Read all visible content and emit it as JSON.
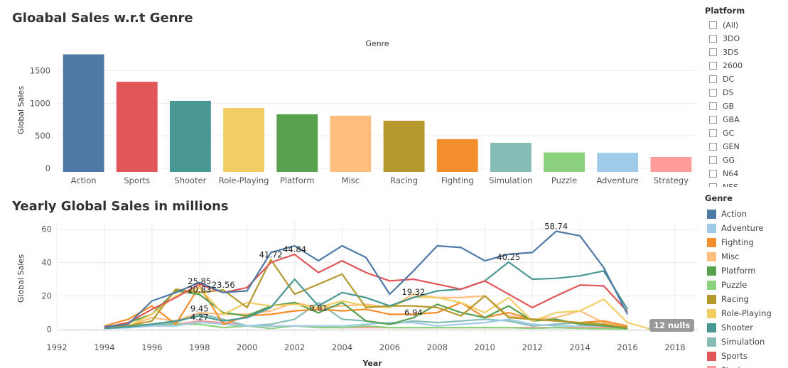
{
  "charts": {
    "bar_title": "Gloabal Sales w.r.t Genre",
    "line_title": "Yearly Global Sales in millions"
  },
  "platform_filter": {
    "title": "Platform",
    "options": [
      "(All)",
      "3DO",
      "3DS",
      "2600",
      "DC",
      "DS",
      "GB",
      "GBA",
      "GC",
      "GEN",
      "GG",
      "N64",
      "NES"
    ]
  },
  "genre_legend": {
    "title": "Genre",
    "items": [
      {
        "label": "Action",
        "color": "#4e79a7"
      },
      {
        "label": "Adventure",
        "color": "#a0cbe8"
      },
      {
        "label": "Fighting",
        "color": "#f28e2b"
      },
      {
        "label": "Misc",
        "color": "#ffbe7d"
      },
      {
        "label": "Platform",
        "color": "#59a14f"
      },
      {
        "label": "Puzzle",
        "color": "#8cd17d"
      },
      {
        "label": "Racing",
        "color": "#b6992d"
      },
      {
        "label": "Role-Playing",
        "color": "#f1ce63"
      },
      {
        "label": "Shooter",
        "color": "#499894"
      },
      {
        "label": "Simulation",
        "color": "#86bcb6"
      },
      {
        "label": "Sports",
        "color": "#e15759"
      },
      {
        "label": "Strategy",
        "color": "#ff9d9a"
      }
    ]
  },
  "nulls_badge": "12 nulls",
  "chart_data": [
    {
      "type": "bar",
      "title": "Gloabal Sales w.r.t Genre",
      "header": "Genre",
      "ylabel": "Global Sales",
      "ylim": [
        0,
        1800
      ],
      "yticks": [
        0,
        500,
        1000,
        1500
      ],
      "grid": true,
      "categories": [
        "Action",
        "Sports",
        "Shooter",
        "Role-Playing",
        "Platform",
        "Misc",
        "Racing",
        "Fighting",
        "Simulation",
        "Puzzle",
        "Adventure",
        "Strategy"
      ],
      "values": [
        1751,
        1330,
        1037,
        927,
        831,
        809,
        732,
        449,
        392,
        245,
        239,
        175
      ],
      "colors": [
        "#4e79a7",
        "#e15759",
        "#499894",
        "#f1ce63",
        "#59a14f",
        "#ffbe7d",
        "#b6992d",
        "#f28e2b",
        "#86bcb6",
        "#8cd17d",
        "#a0cbe8",
        "#ff9d9a"
      ]
    },
    {
      "type": "line",
      "title": "Yearly Global Sales in millions",
      "xlabel": "Year",
      "ylabel": "Global Sales",
      "xlim": [
        1992,
        2018.8
      ],
      "ylim": [
        -1,
        62
      ],
      "xticks": [
        1992,
        1994,
        1996,
        1998,
        2000,
        2002,
        2004,
        2006,
        2008,
        2010,
        2012,
        2014,
        2016,
        2018
      ],
      "yticks": [
        0,
        20,
        40,
        60
      ],
      "grid": true,
      "series": [
        {
          "name": "Action",
          "color": "#4e79a7",
          "x": [
            1994,
            1995,
            1996,
            1997,
            1998,
            1999,
            2000,
            2001,
            2002,
            2003,
            2004,
            2005,
            2006,
            2007,
            2008,
            2009,
            2010,
            2011,
            2012,
            2013,
            2014,
            2015,
            2016
          ],
          "y": [
            1.5,
            3,
            17,
            22,
            28,
            22,
            23,
            46,
            50,
            41,
            50,
            43,
            21,
            35,
            50,
            49,
            41,
            45,
            46,
            58.74,
            56,
            37,
            9
          ]
        },
        {
          "name": "Sports",
          "color": "#e15759",
          "x": [
            1994,
            1995,
            1996,
            1997,
            1998,
            1999,
            2000,
            2001,
            2002,
            2003,
            2004,
            2005,
            2006,
            2007,
            2008,
            2009,
            2010,
            2011,
            2012,
            2013,
            2014,
            2015,
            2016
          ],
          "y": [
            1,
            4,
            12,
            19,
            27,
            22,
            25,
            40,
            44.84,
            34,
            41,
            34,
            29,
            30,
            27,
            24,
            29,
            21,
            13,
            20,
            26.5,
            26,
            10.5
          ]
        },
        {
          "name": "Shooter",
          "color": "#499894",
          "x": [
            1994,
            1995,
            1996,
            1997,
            1998,
            1999,
            2000,
            2001,
            2002,
            2003,
            2004,
            2005,
            2006,
            2007,
            2008,
            2009,
            2010,
            2011,
            2012,
            2013,
            2014,
            2015,
            2016
          ],
          "y": [
            0.5,
            1.5,
            3,
            5,
            8,
            5,
            7,
            13,
            30,
            14,
            22,
            19,
            14,
            19,
            23,
            24,
            29,
            40.25,
            30,
            30.5,
            32,
            35,
            12
          ]
        },
        {
          "name": "Racing",
          "color": "#b6992d",
          "x": [
            1994,
            1995,
            1996,
            1997,
            1998,
            1999,
            2000,
            2001,
            2002,
            2003,
            2004,
            2005,
            2006,
            2007,
            2008,
            2009,
            2010,
            2011,
            2012,
            2013,
            2014,
            2015,
            2016
          ],
          "y": [
            1,
            2,
            5,
            24,
            22,
            23.56,
            13,
            41.72,
            21,
            27,
            33,
            13,
            14,
            14,
            13,
            8,
            20,
            7,
            6,
            5,
            4,
            3,
            1
          ]
        },
        {
          "name": "Role-Playing",
          "color": "#f1ce63",
          "x": [
            1994,
            1995,
            1996,
            1997,
            1998,
            1999,
            2000,
            2001,
            2002,
            2003,
            2004,
            2005,
            2006,
            2007,
            2008,
            2009,
            2010,
            2011,
            2012,
            2013,
            2014,
            2015,
            2016,
            2017
          ],
          "y": [
            1,
            2,
            9,
            20,
            25,
            9,
            16,
            14,
            15,
            13,
            17,
            14,
            13,
            19.32,
            19,
            16,
            10,
            19,
            5,
            10,
            11,
            18,
            4,
            0
          ]
        },
        {
          "name": "Platform",
          "color": "#59a14f",
          "x": [
            1994,
            1995,
            1996,
            1997,
            1998,
            1999,
            2000,
            2001,
            2002,
            2003,
            2004,
            2005,
            2006,
            2007,
            2008,
            2009,
            2010,
            2011,
            2012,
            2013,
            2014,
            2015,
            2016
          ],
          "y": [
            1,
            4,
            9,
            23,
            20.83,
            10,
            8,
            14,
            16,
            9.81,
            16,
            5,
            3,
            6.94,
            15,
            10,
            7,
            14,
            5,
            6,
            3,
            2,
            0.5
          ]
        },
        {
          "name": "Fighting",
          "color": "#f28e2b",
          "x": [
            1994,
            1995,
            1996,
            1997,
            1998,
            1999,
            2000,
            2001,
            2002,
            2003,
            2004,
            2005,
            2006,
            2007,
            2008,
            2009,
            2010,
            2011,
            2012,
            2013,
            2014,
            2015,
            2016
          ],
          "y": [
            2,
            6,
            14,
            3,
            25.85,
            3,
            8,
            9,
            11,
            12,
            11,
            12,
            9,
            9,
            10,
            16,
            7,
            10,
            6,
            5,
            4,
            5,
            2
          ]
        },
        {
          "name": "Misc",
          "color": "#ffbe7d",
          "x": [
            1994,
            1995,
            1996,
            1997,
            1998,
            1999,
            2000,
            2001,
            2002,
            2003,
            2004,
            2005,
            2006,
            2007,
            2008,
            2009,
            2010,
            2011,
            2012,
            2013,
            2014,
            2015,
            2016
          ],
          "y": [
            1,
            2,
            7,
            5,
            10,
            9,
            9,
            11,
            16,
            13,
            14,
            15,
            13,
            21,
            19,
            19,
            20,
            8,
            6,
            7,
            11,
            4,
            1
          ]
        },
        {
          "name": "Adventure",
          "color": "#a0cbe8",
          "x": [
            1994,
            1995,
            1996,
            1997,
            1998,
            1999,
            2000,
            2001,
            2002,
            2003,
            2004,
            2005,
            2006,
            2007,
            2008,
            2009,
            2010,
            2011,
            2012,
            2013,
            2014,
            2015,
            2016
          ],
          "y": [
            0.5,
            1,
            2,
            2,
            4.27,
            3,
            2,
            2,
            2,
            2,
            2,
            3,
            4,
            4,
            2,
            3,
            4,
            6,
            3,
            2,
            2,
            2,
            1
          ]
        },
        {
          "name": "Simulation",
          "color": "#86bcb6",
          "x": [
            1994,
            1995,
            1996,
            1997,
            1998,
            1999,
            2000,
            2001,
            2002,
            2003,
            2004,
            2005,
            2006,
            2007,
            2008,
            2009,
            2010,
            2011,
            2012,
            2013,
            2014,
            2015,
            2016
          ],
          "y": [
            0.5,
            1,
            2,
            4,
            9.45,
            6,
            2,
            3,
            6,
            16,
            6,
            5,
            3,
            5,
            4,
            5,
            6,
            5,
            2,
            3,
            4,
            3,
            1
          ]
        },
        {
          "name": "Puzzle",
          "color": "#8cd17d",
          "x": [
            1994,
            1995,
            1996,
            1997,
            1998,
            1999,
            2000,
            2001,
            2002,
            2003,
            2004,
            2005,
            2006,
            2007,
            2008,
            2009,
            2010,
            2011,
            2012,
            2013,
            2014,
            2015,
            2016
          ],
          "y": [
            1,
            2,
            3,
            3,
            3,
            1,
            2,
            0.5,
            2,
            1,
            1,
            2,
            1,
            1,
            1,
            1,
            1,
            1,
            0.5,
            1,
            0.5,
            0.3,
            0.1
          ]
        },
        {
          "name": "Strategy",
          "color": "#ff9d9a",
          "x": [
            1994,
            1995,
            1996,
            1997,
            1998,
            1999,
            2000,
            2001,
            2002,
            2003,
            2004,
            2005,
            2006,
            2007,
            2008,
            2009,
            2010,
            2011,
            2012,
            2013,
            2014,
            2015,
            2016
          ],
          "y": [
            0.5,
            1,
            2,
            3,
            5,
            4,
            2,
            2,
            2,
            2,
            1,
            1,
            1,
            1,
            1,
            1,
            1,
            1,
            1,
            1,
            1,
            1,
            0.5
          ]
        }
      ],
      "annotations": [
        {
          "text": "41.72",
          "series": "Racing",
          "x": 2001,
          "y": 41.72
        },
        {
          "text": "44.84",
          "series": "Sports",
          "x": 2002,
          "y": 44.84
        },
        {
          "text": "58.74",
          "series": "Action",
          "x": 2013,
          "y": 58.74
        },
        {
          "text": "40.25",
          "series": "Shooter",
          "x": 2011,
          "y": 40.25
        },
        {
          "text": "25.85",
          "series": "Fighting",
          "x": 1998,
          "y": 25.85
        },
        {
          "text": "23.56",
          "series": "Racing",
          "x": 1999,
          "y": 23.56
        },
        {
          "text": "20.83",
          "series": "Platform",
          "x": 1998,
          "y": 20.83
        },
        {
          "text": "9.45",
          "series": "Simulation",
          "x": 1998,
          "y": 9.45
        },
        {
          "text": "4.27",
          "series": "Adventure",
          "x": 1998,
          "y": 4.27
        },
        {
          "text": "9.81",
          "series": "Platform",
          "x": 2003,
          "y": 9.81
        },
        {
          "text": "19.32",
          "series": "Role-Playing",
          "x": 2007,
          "y": 19.32
        },
        {
          "text": "6.94",
          "series": "Platform",
          "x": 2007,
          "y": 6.94
        }
      ]
    }
  ]
}
